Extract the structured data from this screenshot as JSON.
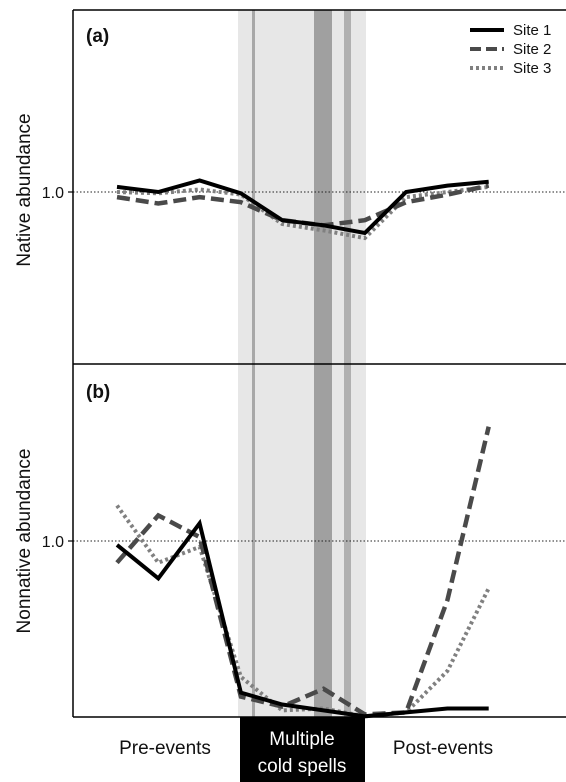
{
  "chart_data": [
    {
      "panel": "(a)",
      "type": "line",
      "ylabel": "Native abundance",
      "yticks": [
        1.0
      ],
      "ytick_labels": [
        "1.0"
      ],
      "ylim": [
        0.0,
        2.0
      ],
      "reference_line": 1.0,
      "x": [
        1,
        2,
        3,
        4,
        5,
        6,
        7,
        8,
        9,
        10
      ],
      "series": [
        {
          "name": "Site 1",
          "style": "solid",
          "color": "#000000",
          "values": [
            1.04,
            1.0,
            1.09,
            0.99,
            0.78,
            0.74,
            0.68,
            1.0,
            1.05,
            1.08
          ]
        },
        {
          "name": "Site 2",
          "style": "dashed",
          "color": "#4a4a4a",
          "values": [
            0.96,
            0.91,
            0.96,
            0.92,
            0.78,
            0.74,
            0.78,
            0.92,
            0.98,
            1.05
          ]
        },
        {
          "name": "Site 3",
          "style": "dotted",
          "color": "#808080",
          "values": [
            1.0,
            0.99,
            1.02,
            0.98,
            0.75,
            0.7,
            0.64,
            0.96,
            1.0,
            1.04
          ]
        }
      ],
      "legend": "top-right"
    },
    {
      "panel": "(b)",
      "type": "line",
      "ylabel": "Nonnative abundance",
      "yticks": [
        1.0
      ],
      "ytick_labels": [
        "1.0"
      ],
      "ylim": [
        0.0,
        2.0
      ],
      "reference_line": 1.0,
      "x": [
        1,
        2,
        3,
        4,
        5,
        6,
        7,
        8,
        9,
        10
      ],
      "series": [
        {
          "name": "Site 1",
          "style": "solid",
          "color": "#000000",
          "values": [
            0.98,
            0.81,
            1.09,
            0.23,
            0.17,
            0.14,
            0.11,
            0.13,
            0.15,
            0.15
          ]
        },
        {
          "name": "Site 2",
          "style": "dashed",
          "color": "#4a4a4a",
          "values": [
            0.89,
            1.13,
            1.02,
            0.21,
            0.16,
            0.25,
            0.12,
            0.13,
            0.7,
            1.58
          ]
        },
        {
          "name": "Site 3",
          "style": "dotted",
          "color": "#808080",
          "values": [
            1.18,
            0.89,
            0.97,
            0.31,
            0.14,
            0.15,
            0.11,
            0.13,
            0.34,
            0.76
          ]
        }
      ],
      "legend": "none"
    }
  ],
  "phases": {
    "pre": "Pre-events",
    "cold_line1": "Multiple",
    "cold_line2": "cold spells",
    "post": "Post-events"
  }
}
